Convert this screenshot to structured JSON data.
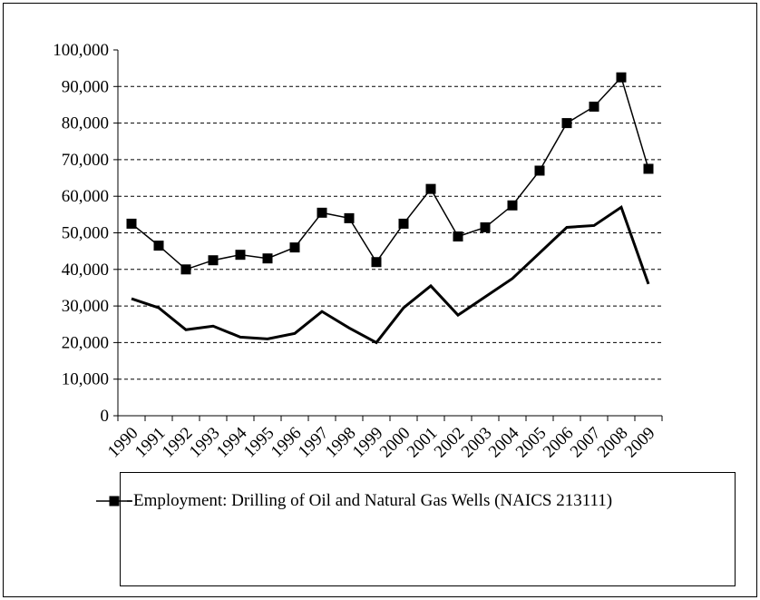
{
  "chart_data": {
    "type": "line",
    "categories": [
      "1990",
      "1991",
      "1992",
      "1993",
      "1994",
      "1995",
      "1996",
      "1997",
      "1998",
      "1999",
      "2000",
      "2001",
      "2002",
      "2003",
      "2004",
      "2005",
      "2006",
      "2007",
      "2008",
      "2009"
    ],
    "series": [
      {
        "name": "Employment: Drilling of Oil and Natural Gas Wells (NAICS 213111)",
        "color": "#000000",
        "marker": "square",
        "values": [
          52500,
          46500,
          40000,
          42500,
          44000,
          43000,
          46000,
          55500,
          54000,
          42000,
          52500,
          62000,
          49000,
          51500,
          57500,
          67000,
          80000,
          84500,
          92500,
          67500
        ]
      },
      {
        "color": "#000000",
        "values": [
          32000,
          29500,
          23500,
          24500,
          21500,
          21000,
          22500,
          28500,
          24000,
          20000,
          29500,
          35500,
          27500,
          32500,
          37500,
          44500,
          51500,
          52000,
          57000,
          36000
        ]
      }
    ],
    "ylim": [
      0,
      100000
    ],
    "yticks": [
      0,
      {
        "value": 10000,
        "label": "10,000"
      },
      {
        "value": 20000,
        "label": "20,000"
      },
      {
        "value": 30000,
        "label": "30,000"
      },
      {
        "value": 40000,
        "label": "40,000"
      },
      {
        "value": 50000,
        "label": "50,000"
      },
      {
        "value": 60000,
        "label": "60,000"
      },
      {
        "value": 70000,
        "label": "70,000"
      },
      {
        "value": 80000,
        "label": "80,000"
      },
      {
        "value": 90000,
        "label": "90,000"
      },
      {
        "value": 100000,
        "label": "100,000"
      }
    ],
    "grid": true
  }
}
